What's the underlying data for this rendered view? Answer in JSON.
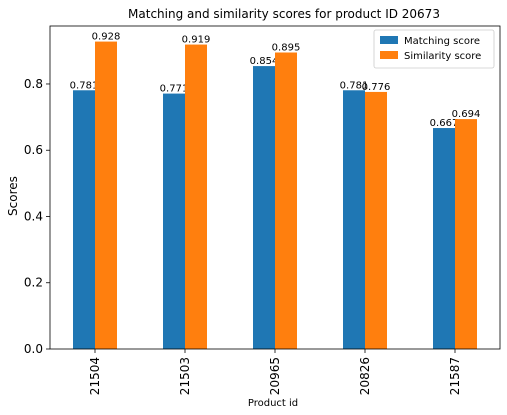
{
  "chart_data": {
    "type": "bar",
    "title": "Matching and similarity scores for product ID 20673",
    "xlabel": "Product id",
    "ylabel": "Scores",
    "categories": [
      "21504",
      "21503",
      "20965",
      "20826",
      "21587"
    ],
    "series": [
      {
        "name": "Matching score",
        "values": [
          0.781,
          0.771,
          0.854,
          0.781,
          0.667
        ],
        "labels": [
          "0.781",
          "0.771",
          "0.854",
          "0.781",
          "0.667"
        ],
        "color": "#1f77b4"
      },
      {
        "name": "Similarity score",
        "values": [
          0.928,
          0.919,
          0.895,
          0.776,
          0.694
        ],
        "labels": [
          "0.928",
          "0.919",
          "0.895",
          "0.776",
          "0.694"
        ],
        "color": "#ff7f0e"
      }
    ],
    "ylim": [
      0,
      0.975
    ],
    "yticks": [
      0.0,
      0.2,
      0.4,
      0.6,
      0.8
    ],
    "ytick_labels": [
      "0.0",
      "0.2",
      "0.4",
      "0.6",
      "0.8"
    ],
    "grid": false,
    "legend_position": "top-right"
  }
}
